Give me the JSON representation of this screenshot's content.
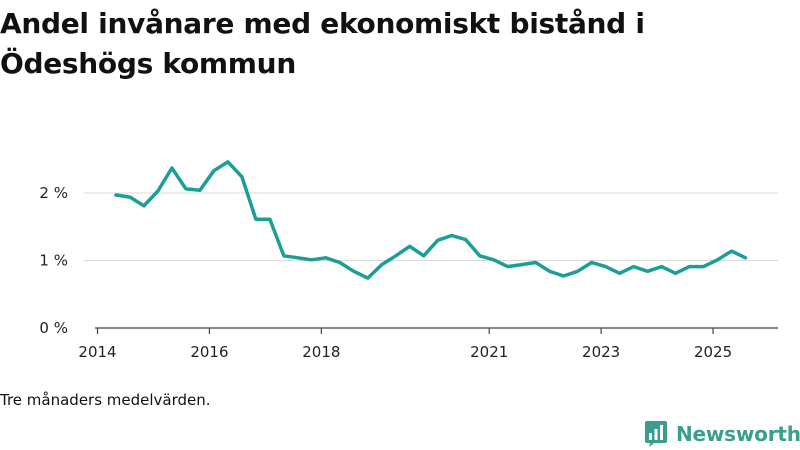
{
  "title": "Andel invånare med ekonomiskt bistånd i Ödeshögs kommun",
  "footnote": "Tre månaders medelvärden.",
  "brand": {
    "name": "Newsworthy",
    "icon": "newsworthy-logo-icon",
    "color": "#3a9e8f"
  },
  "chart_data": {
    "type": "line",
    "title": "Andel invånare med ekonomiskt bistånd i Ödeshögs kommun",
    "xlabel": "",
    "ylabel": "",
    "xlim": [
      2014,
      2026
    ],
    "ylim": [
      0,
      2.6
    ],
    "grid": true,
    "legend": "none",
    "x_ticks": [
      {
        "value": 2014,
        "label": "2014"
      },
      {
        "value": 2016,
        "label": "2016"
      },
      {
        "value": 2018,
        "label": "2018"
      },
      {
        "value": 2021,
        "label": "2021"
      },
      {
        "value": 2023,
        "label": "2023"
      },
      {
        "value": 2025,
        "label": "2025"
      }
    ],
    "y_ticks": [
      {
        "value": 0,
        "label": "0 %"
      },
      {
        "value": 1,
        "label": "1 %"
      },
      {
        "value": 2,
        "label": "2 %"
      }
    ],
    "series": [
      {
        "name": "Andel invånare med ekonomiskt bistånd",
        "color": "#1a9e96",
        "x": [
          2014.33,
          2014.58,
          2014.83,
          2015.08,
          2015.33,
          2015.58,
          2015.83,
          2016.08,
          2016.33,
          2016.58,
          2016.83,
          2017.08,
          2017.33,
          2017.58,
          2017.83,
          2018.08,
          2018.33,
          2018.58,
          2018.83,
          2019.08,
          2019.33,
          2019.58,
          2019.83,
          2020.08,
          2020.33,
          2020.58,
          2020.83,
          2021.08,
          2021.33,
          2021.58,
          2021.83,
          2022.08,
          2022.33,
          2022.58,
          2022.83,
          2023.08,
          2023.33,
          2023.58,
          2023.83,
          2024.08,
          2024.33,
          2024.58,
          2024.83,
          2025.08,
          2025.33,
          2025.58
        ],
        "values": [
          1.97,
          1.94,
          1.81,
          2.03,
          2.37,
          2.06,
          2.04,
          2.33,
          2.46,
          2.24,
          1.61,
          1.61,
          1.07,
          1.04,
          1.01,
          1.04,
          0.97,
          0.84,
          0.74,
          0.94,
          1.07,
          1.21,
          1.07,
          1.3,
          1.37,
          1.31,
          1.07,
          1.01,
          0.91,
          0.94,
          0.97,
          0.84,
          0.77,
          0.84,
          0.97,
          0.91,
          0.81,
          0.91,
          0.84,
          0.91,
          0.81,
          0.91,
          0.91,
          1.01,
          1.14,
          1.04
        ]
      }
    ]
  }
}
